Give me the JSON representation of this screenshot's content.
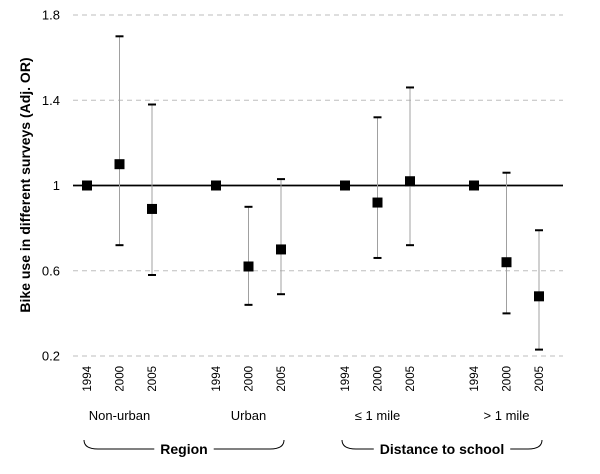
{
  "chart_data": {
    "type": "scatter",
    "title": "",
    "xlabel": "",
    "ylabel": "Bike use in different surveys (Adj. OR)",
    "ylim": [
      0.2,
      1.8
    ],
    "yticks": [
      "0.2",
      "0.6",
      "1",
      "1.4",
      "1.8"
    ],
    "reference_line": 1,
    "grid": "horizontal dashed",
    "groups": [
      {
        "label": "Non-urban",
        "years": [
          "1994",
          "2000",
          "2005"
        ],
        "values": [
          1.0,
          1.1,
          0.89
        ],
        "lower": [
          null,
          0.72,
          0.58
        ],
        "upper": [
          null,
          1.7,
          1.38
        ]
      },
      {
        "label": "Urban",
        "years": [
          "1994",
          "2000",
          "2005"
        ],
        "values": [
          1.0,
          0.62,
          0.7
        ],
        "lower": [
          null,
          0.44,
          0.49
        ],
        "upper": [
          null,
          0.9,
          1.03
        ]
      },
      {
        "label": "≤ 1 mile",
        "years": [
          "1994",
          "2000",
          "2005"
        ],
        "values": [
          1.0,
          0.92,
          1.02
        ],
        "lower": [
          null,
          0.66,
          0.72
        ],
        "upper": [
          null,
          1.32,
          1.46
        ]
      },
      {
        "label": "> 1 mile",
        "years": [
          "1994",
          "2000",
          "2005"
        ],
        "values": [
          1.0,
          0.64,
          0.48
        ],
        "lower": [
          null,
          0.4,
          0.23
        ],
        "upper": [
          null,
          1.06,
          0.79
        ]
      }
    ],
    "supergroups": [
      {
        "label": "Region",
        "groups": [
          0,
          1
        ]
      },
      {
        "label": "Distance to school",
        "groups": [
          2,
          3
        ]
      }
    ]
  }
}
